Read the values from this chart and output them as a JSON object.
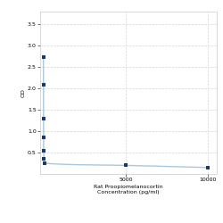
{
  "x_values": [
    0.78,
    1.56,
    3.125,
    6.25,
    12.5,
    25,
    50,
    5000,
    10000
  ],
  "y_values": [
    2.72,
    2.08,
    1.3,
    0.85,
    0.55,
    0.35,
    0.25,
    0.2,
    0.15
  ],
  "line_color": "#a8c8e0",
  "marker_color": "#1a3a6b",
  "marker_size": 3.5,
  "line_width": 1.0,
  "xlabel_line1": "Rat Proopiomelanocortin",
  "xlabel_line2": "Concentration (pg/ml)",
  "ylabel": "OD",
  "xlim": [
    -200,
    10500
  ],
  "ylim": [
    0,
    3.8
  ],
  "yticks": [
    0.5,
    1.0,
    1.5,
    2.0,
    2.5,
    3.0,
    3.5
  ],
  "xtick_positions": [
    5000,
    10000
  ],
  "xtick_labels": [
    "5000",
    "10000"
  ],
  "grid_color": "#ccd8e8",
  "background_color": "#ffffff",
  "font_size_axis_label": 4.5,
  "font_size_tick": 4.5
}
